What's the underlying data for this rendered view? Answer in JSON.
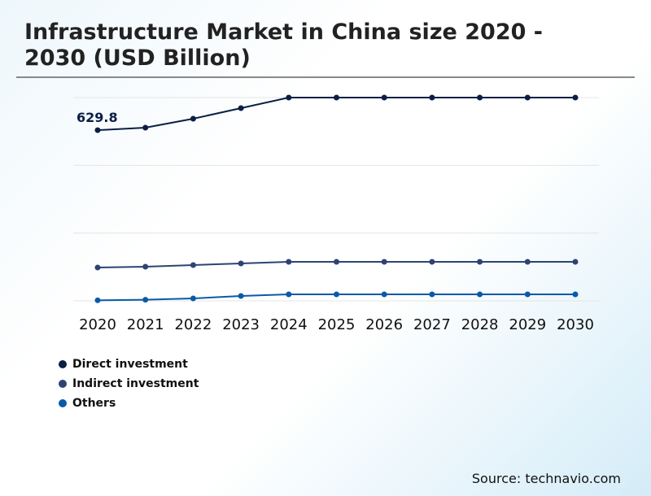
{
  "chart_data": {
    "type": "line",
    "title": "Infrastructure Market in China size 2020 - 2030 (USD Billion)",
    "xlabel": "",
    "ylabel": "",
    "x": [
      "2020",
      "2021",
      "2022",
      "2023",
      "2024",
      "2025",
      "2026",
      "2027",
      "2028",
      "2029",
      "2030"
    ],
    "ylim": [
      0,
      750
    ],
    "grid": true,
    "legend_placement": "bottom-left",
    "series": [
      {
        "name": "Direct investment",
        "color": "#0b1f45",
        "values": [
          629.8,
          639,
          672,
          711,
          750,
          750,
          750,
          750,
          750,
          750,
          750
        ]
      },
      {
        "name": "Indirect investment",
        "color": "#2d4373",
        "values": [
          123,
          126,
          132,
          138,
          144,
          144,
          144,
          144,
          144,
          144,
          144
        ]
      },
      {
        "name": "Others",
        "color": "#0a5aa8",
        "values": [
          2,
          4,
          9,
          18,
          24,
          24,
          24,
          24,
          24,
          24,
          24
        ]
      }
    ],
    "annotations": [
      {
        "text": "629.8",
        "x": "2020",
        "series": "Direct investment"
      }
    ]
  },
  "source": "Source: technavio.com"
}
